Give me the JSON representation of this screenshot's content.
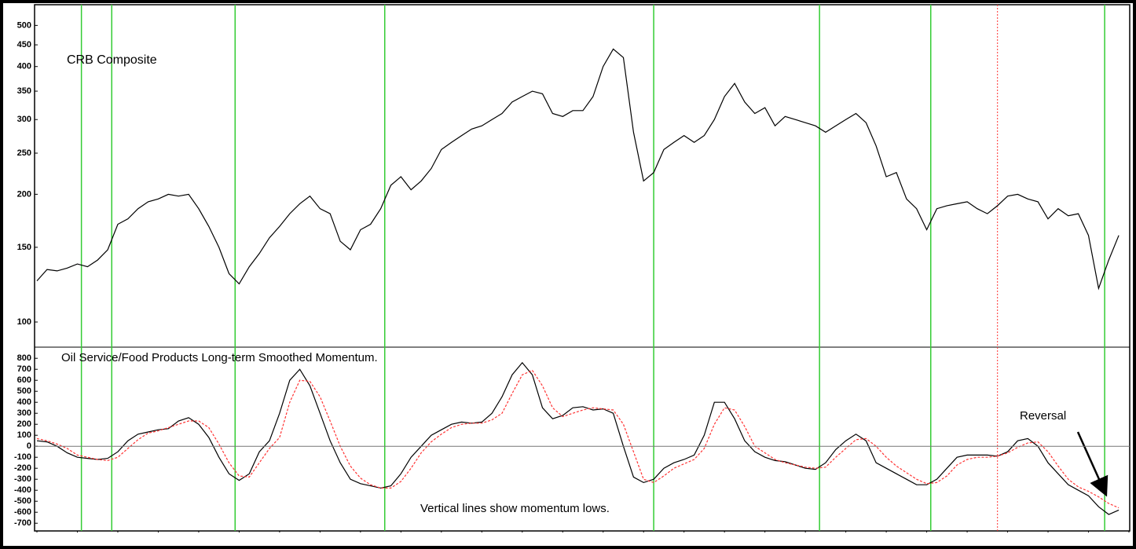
{
  "chart_data": [
    {
      "type": "line",
      "title": "CRB Composite",
      "log_scale": true,
      "x": [
        1994,
        1994.25,
        1994.5,
        1994.75,
        1995,
        1995.25,
        1995.5,
        1995.75,
        1996,
        1996.25,
        1996.5,
        1996.75,
        1997,
        1997.25,
        1997.5,
        1997.75,
        1998,
        1998.25,
        1998.5,
        1998.75,
        1999,
        1999.25,
        1999.5,
        1999.75,
        2000,
        2000.25,
        2000.5,
        2000.75,
        2001,
        2001.25,
        2001.5,
        2001.75,
        2002,
        2002.25,
        2002.5,
        2002.75,
        2003,
        2003.25,
        2003.5,
        2003.75,
        2004,
        2004.25,
        2004.5,
        2004.75,
        2005,
        2005.25,
        2005.5,
        2005.75,
        2006,
        2006.25,
        2006.5,
        2006.75,
        2007,
        2007.25,
        2007.5,
        2007.75,
        2008,
        2008.25,
        2008.5,
        2008.75,
        2009,
        2009.25,
        2009.5,
        2009.75,
        2010,
        2010.25,
        2010.5,
        2010.75,
        2011,
        2011.25,
        2011.5,
        2011.75,
        2012,
        2012.25,
        2012.5,
        2012.75,
        2013,
        2013.25,
        2013.5,
        2013.75,
        2014,
        2014.25,
        2014.5,
        2014.75,
        2015,
        2015.25,
        2015.5,
        2015.75,
        2016,
        2016.25,
        2016.5,
        2016.75,
        2017,
        2017.25,
        2017.5,
        2017.75,
        2018,
        2018.25,
        2018.5,
        2018.75,
        2019,
        2019.25,
        2019.5,
        2019.75,
        2020,
        2020.25,
        2020.5,
        2020.75
      ],
      "series": [
        {
          "color": "#000000",
          "values": [
            125,
            133,
            132,
            134,
            137,
            135,
            140,
            148,
            170,
            175,
            185,
            192,
            195,
            200,
            198,
            200,
            185,
            168,
            150,
            130,
            123,
            135,
            145,
            158,
            168,
            180,
            190,
            198,
            185,
            180,
            155,
            148,
            165,
            170,
            185,
            210,
            220,
            205,
            215,
            230,
            255,
            265,
            275,
            285,
            290,
            300,
            310,
            330,
            340,
            350,
            345,
            310,
            305,
            315,
            315,
            340,
            400,
            440,
            420,
            280,
            215,
            225,
            255,
            265,
            275,
            265,
            275,
            300,
            340,
            365,
            330,
            310,
            320,
            290,
            305,
            300,
            295,
            290,
            280,
            290,
            300,
            310,
            295,
            260,
            220,
            225,
            195,
            185,
            165,
            185,
            188,
            190,
            192,
            185,
            180,
            188,
            198,
            200,
            195,
            192,
            175,
            185,
            178,
            180,
            160,
            120,
            140,
            160
          ]
        }
      ],
      "ylim": [
        88,
        550
      ],
      "yticks": [
        100,
        150,
        200,
        250,
        300,
        350,
        400,
        450,
        500
      ],
      "xlim": [
        1994,
        2021
      ],
      "vlines": [
        1995.1,
        1995.85,
        1998.9,
        2002.6,
        2009.25,
        2013.35,
        2016.1,
        2020.4
      ],
      "vline_color": "#33cc33",
      "dotted_vlines": [
        2017.75
      ],
      "dotted_vline_color": "#ff3333"
    },
    {
      "type": "line",
      "title": "Oil Service/Food Products Long-term Smoothed Momentum.",
      "annotations": [
        "Vertical lines show momentum lows.",
        "Reversal"
      ],
      "x": [
        1994,
        1994.25,
        1994.5,
        1994.75,
        1995,
        1995.25,
        1995.5,
        1995.75,
        1996,
        1996.25,
        1996.5,
        1996.75,
        1997,
        1997.25,
        1997.5,
        1997.75,
        1998,
        1998.25,
        1998.5,
        1998.75,
        1999,
        1999.25,
        1999.5,
        1999.75,
        2000,
        2000.25,
        2000.5,
        2000.75,
        2001,
        2001.25,
        2001.5,
        2001.75,
        2002,
        2002.25,
        2002.5,
        2002.75,
        2003,
        2003.25,
        2003.5,
        2003.75,
        2004,
        2004.25,
        2004.5,
        2004.75,
        2005,
        2005.25,
        2005.5,
        2005.75,
        2006,
        2006.25,
        2006.5,
        2006.75,
        2007,
        2007.25,
        2007.5,
        2007.75,
        2008,
        2008.25,
        2008.5,
        2008.75,
        2009,
        2009.25,
        2009.5,
        2009.75,
        2010,
        2010.25,
        2010.5,
        2010.75,
        2011,
        2011.25,
        2011.5,
        2011.75,
        2012,
        2012.25,
        2012.5,
        2012.75,
        2013,
        2013.25,
        2013.5,
        2013.75,
        2014,
        2014.25,
        2014.5,
        2014.75,
        2015,
        2015.25,
        2015.5,
        2015.75,
        2016,
        2016.25,
        2016.5,
        2016.75,
        2017,
        2017.25,
        2017.5,
        2017.75,
        2018,
        2018.25,
        2018.5,
        2018.75,
        2019,
        2019.25,
        2019.5,
        2019.75,
        2020,
        2020.25,
        2020.5,
        2020.75
      ],
      "series": [
        {
          "color": "#000000",
          "values": [
            50,
            40,
            0,
            -60,
            -100,
            -110,
            -120,
            -110,
            -50,
            50,
            110,
            130,
            150,
            160,
            230,
            260,
            200,
            80,
            -100,
            -250,
            -310,
            -250,
            -50,
            50,
            300,
            600,
            700,
            550,
            300,
            50,
            -150,
            -300,
            -340,
            -360,
            -380,
            -360,
            -250,
            -100,
            0,
            100,
            150,
            200,
            220,
            210,
            220,
            300,
            450,
            650,
            760,
            650,
            350,
            250,
            280,
            350,
            360,
            330,
            340,
            300,
            0,
            -280,
            -330,
            -300,
            -200,
            -150,
            -120,
            -80,
            100,
            400,
            400,
            250,
            50,
            -50,
            -100,
            -130,
            -140,
            -170,
            -200,
            -210,
            -150,
            -30,
            50,
            110,
            50,
            -150,
            -200,
            -250,
            -300,
            -350,
            -350,
            -300,
            -200,
            -100,
            -80,
            -80,
            -80,
            -90,
            -50,
            50,
            70,
            0,
            -150,
            -250,
            -350,
            -400,
            -450,
            -550,
            -620,
            -580
          ]
        },
        {
          "color": "#ff3333",
          "dashed": true,
          "values": [
            70,
            50,
            20,
            -20,
            -80,
            -100,
            -120,
            -130,
            -100,
            -20,
            60,
            120,
            140,
            170,
            200,
            230,
            230,
            170,
            20,
            -150,
            -270,
            -280,
            -150,
            -20,
            80,
            400,
            600,
            590,
            450,
            230,
            0,
            -180,
            -290,
            -350,
            -380,
            -380,
            -320,
            -200,
            -60,
            40,
            110,
            170,
            200,
            210,
            210,
            240,
            300,
            480,
            650,
            690,
            550,
            350,
            270,
            300,
            330,
            350,
            340,
            330,
            200,
            -50,
            -300,
            -330,
            -270,
            -200,
            -160,
            -120,
            -20,
            200,
            350,
            330,
            180,
            0,
            -60,
            -120,
            -150,
            -170,
            -190,
            -200,
            -190,
            -100,
            -20,
            60,
            70,
            0,
            -100,
            -180,
            -240,
            -300,
            -340,
            -330,
            -270,
            -170,
            -120,
            -100,
            -100,
            -90,
            -60,
            -10,
            30,
            40,
            -50,
            -180,
            -300,
            -370,
            -410,
            -460,
            -520,
            -560
          ]
        }
      ],
      "ylim": [
        -770,
        880
      ],
      "yticks": [
        800,
        700,
        600,
        500,
        400,
        300,
        200,
        100,
        0,
        -100,
        -200,
        -300,
        -400,
        -500,
        -600,
        -700
      ],
      "reference_line": 0,
      "reference_color": "#777777",
      "xlim": [
        1994,
        2021
      ],
      "xticks": [
        1994,
        1995,
        1996,
        1997,
        1998,
        1999,
        2000,
        2001,
        2002,
        2003,
        2004,
        2005,
        2006,
        2007,
        2008,
        2009,
        2010,
        2011,
        2012,
        2013,
        2014,
        2015,
        2016,
        2017,
        2018,
        2019,
        2020,
        2021
      ]
    }
  ]
}
